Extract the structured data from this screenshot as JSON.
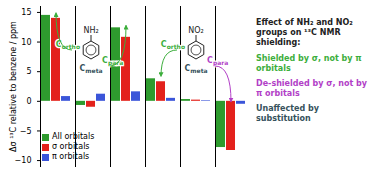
{
  "chart_data": {
    "type": "bar",
    "y_label": "Δσ ¹³C relative to benzene / ppm",
    "categories": [
      "Cortho",
      "Cmeta",
      "Cpara",
      "Cortho",
      "Cmeta",
      "Cpara"
    ],
    "category_groups": [
      "NH₂",
      "NH₂",
      "NH₂",
      "NO₂",
      "NO₂",
      "NO₂"
    ],
    "category_colors": [
      "#3cae3c",
      "#36525c",
      "#3cae3c",
      "#3cae3c",
      "#36525c",
      "#b23fc7"
    ],
    "series": [
      {
        "name": "All orbitals",
        "color": "#2e9b2e",
        "values": [
          14.5,
          -0.7,
          12.4,
          3.8,
          0.3,
          -7.8
        ]
      },
      {
        "name": "σ orbitals",
        "color": "#e3211c",
        "values": [
          14.0,
          -1.0,
          10.8,
          3.3,
          0.2,
          -8.3
        ]
      },
      {
        "name": "π orbitals",
        "color": "#3b55d9",
        "values": [
          0.8,
          1.2,
          1.6,
          0.5,
          0.1,
          -0.5
        ]
      }
    ],
    "ylim": [
      -11,
      16
    ],
    "yticks": [
      -10,
      -5,
      0,
      5,
      10,
      15
    ],
    "tick_labels": "y",
    "legend": "bottom-left",
    "annotations": [
      {
        "text": "Effect of NH₂ and NO₂ groups on ¹³C NMR shielding:"
      },
      {
        "text": "Shielded by σ, not by π orbitals",
        "color": "#3cae3c"
      },
      {
        "text": "De-shielded by σ, not by π orbitals",
        "color": "#b23fc7"
      },
      {
        "text": "Unaffected by substitution",
        "color": "#36525c"
      }
    ]
  }
}
